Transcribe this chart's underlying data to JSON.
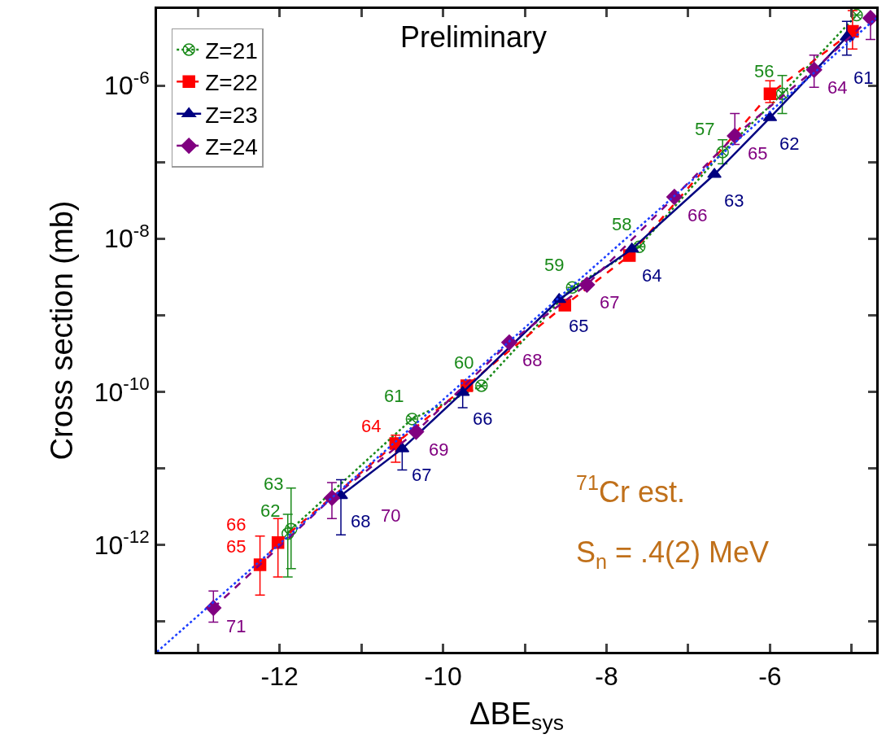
{
  "chart_data": {
    "type": "line",
    "xlabel": "ΔBE$_{sys}$",
    "ylabel": "Cross section (mb)",
    "annotations": [
      "Preliminary",
      "$^{71}$Cr est.",
      "S$_{n}$ = .4(2) MeV",
      {
        "text": "62",
        "x": -11.9,
        "y": 1.4e-12
      },
      {
        "text": "63",
        "x": -11.86,
        "y": 1.6e-12
      },
      {
        "text": "61",
        "x": -10.38,
        "y": 4.4e-11
      },
      {
        "text": "60",
        "x": -9.53,
        "y": 1.2e-10
      },
      {
        "text": "59",
        "x": -8.42,
        "y": 2.3e-09
      },
      {
        "text": "58",
        "x": -7.6,
        "y": 7.8e-09
      },
      {
        "text": "57",
        "x": -6.58,
        "y": 1.35e-07
      },
      {
        "text": "56",
        "x": -5.85,
        "y": 7.8e-07
      },
      {
        "text": "65",
        "x": -12.24,
        "y": 5.5e-13
      },
      {
        "text": "66",
        "x": -12.02,
        "y": 1.07e-12
      },
      {
        "text": "64",
        "x": -10.58,
        "y": 2.1e-11
      },
      {
        "text": "68",
        "x": -11.25,
        "y": 4.4e-12
      },
      {
        "text": "67",
        "x": -10.5,
        "y": 1.8e-11
      },
      {
        "text": "66",
        "x": -9.76,
        "y": 9.8e-11
      },
      {
        "text": "65",
        "x": -8.58,
        "y": 1.6e-09
      },
      {
        "text": "64",
        "x": -7.69,
        "y": 7.3e-09
      },
      {
        "text": "63",
        "x": -6.68,
        "y": 6.9e-08
      },
      {
        "text": "62",
        "x": -6.0,
        "y": 3.8e-07
      },
      {
        "text": "61",
        "x": -5.06,
        "y": 4.3e-06
      },
      {
        "text": "71",
        "x": -12.81,
        "y": 1.5e-13
      },
      {
        "text": "70",
        "x": -11.36,
        "y": 4.1e-12
      },
      {
        "text": "69",
        "x": -10.33,
        "y": 3e-11
      },
      {
        "text": "68",
        "x": -9.19,
        "y": 4.4e-10
      },
      {
        "text": "67",
        "x": -8.24,
        "y": 2.5e-09
      },
      {
        "text": "66",
        "x": -7.17,
        "y": 3.5e-08
      },
      {
        "text": "65",
        "x": -6.43,
        "y": 2.2e-07
      },
      {
        "text": "64",
        "x": -5.46,
        "y": 1.6e-06
      }
    ],
    "xlim": [
      -13.5,
      -4.7
    ],
    "xticks": [
      {
        "value": -13,
        "label": null
      },
      -12,
      {
        "value": -11,
        "label": null
      },
      -10,
      {
        "value": -9,
        "label": null
      },
      -8,
      {
        "value": -7,
        "label": null
      },
      -6,
      {
        "value": -5,
        "label": null
      }
    ],
    "ylim": [
      4e-14,
      1e-05
    ],
    "log": true,
    "yticks": [
      {
        "value": 1e-13,
        "label": null
      },
      {
        "value": 1e-12,
        "label": "10$^{-12}$"
      },
      {
        "value": 1e-11,
        "label": null
      },
      {
        "value": 1e-10,
        "label": "10$^{-10}$"
      },
      {
        "value": 1e-09,
        "label": null
      },
      {
        "value": 1e-08,
        "label": "10$^{-8}$"
      },
      {
        "value": 1e-07,
        "label": null
      },
      {
        "value": 1e-06,
        "label": "10$^{-6}$"
      }
    ],
    "legend": "top left",
    "series": [
      {
        "name": "Z=21",
        "color": "#1a8a1a",
        "marker": "cross",
        "line_style": "dotted",
        "x": [
          -11.9,
          -11.86,
          -10.38,
          -9.53,
          -8.42,
          -7.6,
          -6.58,
          -5.85,
          -4.94
        ],
        "values": [
          1.4e-12,
          1.6e-12,
          4.4e-11,
          1.2e-10,
          2.3e-09,
          7.8e-09,
          1.35e-07,
          7.8e-07,
          8.3e-06
        ],
        "errors": [
          [
            3.8e-13,
            2.5e-12
          ],
          [
            4.9e-13,
            5.5e-12
          ],
          null,
          null,
          null,
          null,
          [
            9.5e-08,
            1.95e-07
          ],
          [
            4.3e-07,
            1.35e-06
          ],
          null
        ]
      },
      {
        "name": "Z=22",
        "color": "#ff0000",
        "marker": "square",
        "line_style": "dashed",
        "x": [
          -12.24,
          -12.02,
          -10.58,
          -9.71,
          -8.51,
          -7.72,
          -6.0,
          -4.99
        ],
        "values": [
          5.5e-13,
          1.07e-12,
          2.1e-11,
          1.2e-10,
          1.35e-09,
          6e-09,
          7.8e-07,
          5.1e-06
        ],
        "errors": [
          [
            2.2e-13,
            1.3e-12
          ],
          [
            3.8e-13,
            2.2e-12
          ],
          [
            1.2e-11,
            2.7e-11
          ],
          null,
          null,
          null,
          [
            6e-07,
            1.15e-06
          ],
          [
            3e-06,
            9.5e-06
          ]
        ]
      },
      {
        "name": "Z=23",
        "color": "#000080",
        "marker": "triangle",
        "line_style": "solid",
        "x": [
          -11.25,
          -10.5,
          -9.76,
          -8.58,
          -7.69,
          -6.68,
          -6.0,
          -5.06
        ],
        "values": [
          4.4e-12,
          1.8e-11,
          9.8e-11,
          1.6e-09,
          7.3e-09,
          6.9e-08,
          3.8e-07,
          4.3e-06
        ],
        "errors": [
          [
            1.35e-12,
            7.1e-12
          ],
          [
            9.5e-12,
            1.8e-11
          ],
          [
            6.2e-11,
            9.8e-11
          ],
          null,
          null,
          null,
          null,
          [
            2.5e-06,
            6.9e-06
          ]
        ]
      },
      {
        "name": "Z=24",
        "color": "#800080",
        "marker": "diamond",
        "line_style": "dashed",
        "x": [
          -12.81,
          -11.36,
          -10.33,
          -9.19,
          -8.24,
          -7.17,
          -6.43,
          -5.46,
          -4.77
        ],
        "values": [
          1.5e-13,
          4.1e-12,
          3e-11,
          4.4e-10,
          2.5e-09,
          3.5e-08,
          2.2e-07,
          1.6e-06,
          7.6e-06
        ],
        "errors": [
          [
            9.8e-14,
            2.5e-13
          ],
          [
            2.2e-12,
            6.5e-12
          ],
          null,
          null,
          null,
          null,
          [
            1.7e-07,
            4.3e-07
          ],
          [
            9.5e-07,
            2.5e-06
          ],
          [
            4e-06,
            7.6e-06
          ]
        ]
      },
      {
        "color": "#1a3cff",
        "marker": "none",
        "line_style": "dotted",
        "x": [
          -13.5,
          -4.7
        ],
        "values": [
          4e-14,
          7.6e-06
        ]
      }
    ]
  }
}
